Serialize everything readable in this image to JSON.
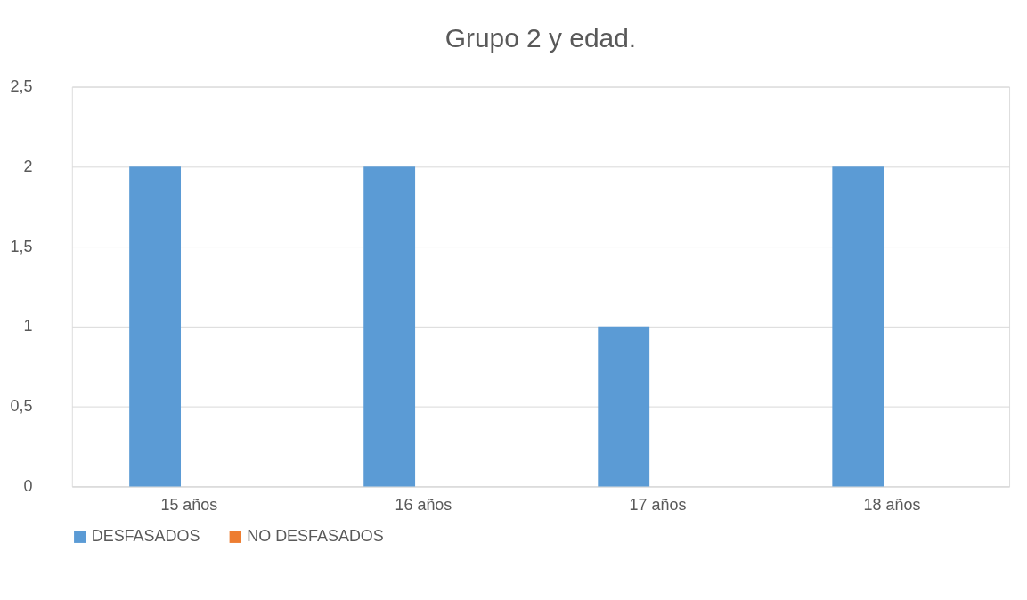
{
  "chart_data": {
    "type": "bar",
    "title": "Grupo 2 y edad.",
    "categories": [
      "15 años",
      "16 años",
      "17 años",
      "18 años"
    ],
    "series": [
      {
        "name": "DESFASADOS",
        "color": "#5b9bd5",
        "values": [
          2,
          2,
          1,
          2
        ]
      },
      {
        "name": "NO DESFASADOS",
        "color": "#ed7d31",
        "values": [
          0,
          0,
          0,
          0
        ]
      }
    ],
    "ylim": [
      0,
      2.5
    ],
    "yticks": [
      0,
      {
        "value": 0.5,
        "label": "0,5"
      },
      1,
      {
        "value": 1.5,
        "label": "1,5"
      },
      2,
      {
        "value": 2.5,
        "label": "2,5"
      }
    ],
    "grid": "y",
    "legend": "bottom"
  }
}
